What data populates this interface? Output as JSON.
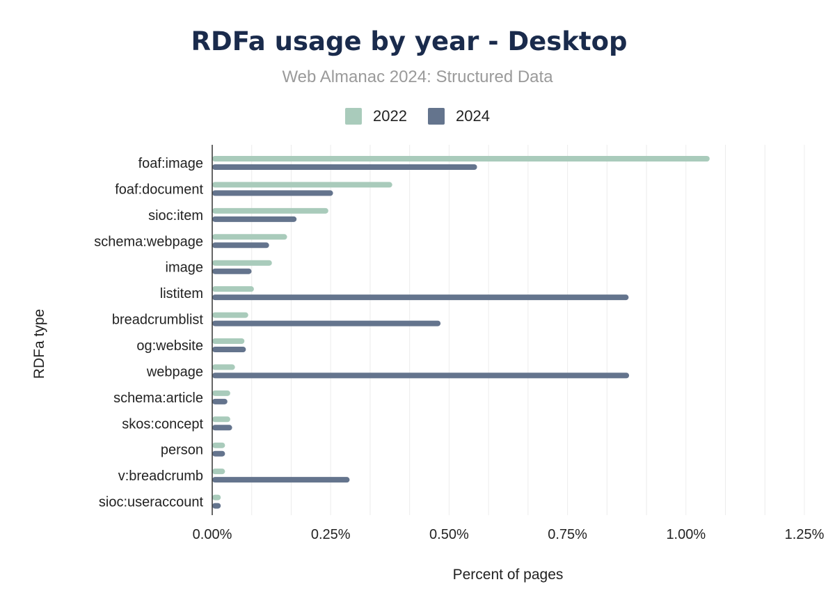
{
  "chart_data": {
    "type": "bar",
    "orientation": "horizontal",
    "title": "RDFa usage by year - Desktop",
    "subtitle": "Web Almanac 2024: Structured Data",
    "xlabel": "Percent of pages",
    "ylabel": "RDFa type",
    "xlim": [
      0,
      1.25
    ],
    "x_ticks": [
      "0.00%",
      "0.25%",
      "0.50%",
      "0.75%",
      "1.00%",
      "1.25%"
    ],
    "grid": true,
    "legend_position": "top-center",
    "categories": [
      "foaf:image",
      "foaf:document",
      "sioc:item",
      "schema:webpage",
      "image",
      "listitem",
      "breadcrumblist",
      "og:website",
      "webpage",
      "schema:article",
      "skos:concept",
      "person",
      "v:breadcrumb",
      "sioc:useraccount"
    ],
    "series": [
      {
        "name": "2022",
        "color": "#a9cbbb",
        "values": [
          1.05,
          0.38,
          0.245,
          0.158,
          0.126,
          0.088,
          0.076,
          0.068,
          0.048,
          0.038,
          0.038,
          0.027,
          0.027,
          0.018
        ]
      },
      {
        "name": "2024",
        "color": "#64748d",
        "values": [
          0.559,
          0.255,
          0.178,
          0.12,
          0.083,
          0.879,
          0.482,
          0.071,
          0.88,
          0.032,
          0.042,
          0.027,
          0.29,
          0.018
        ]
      }
    ]
  }
}
